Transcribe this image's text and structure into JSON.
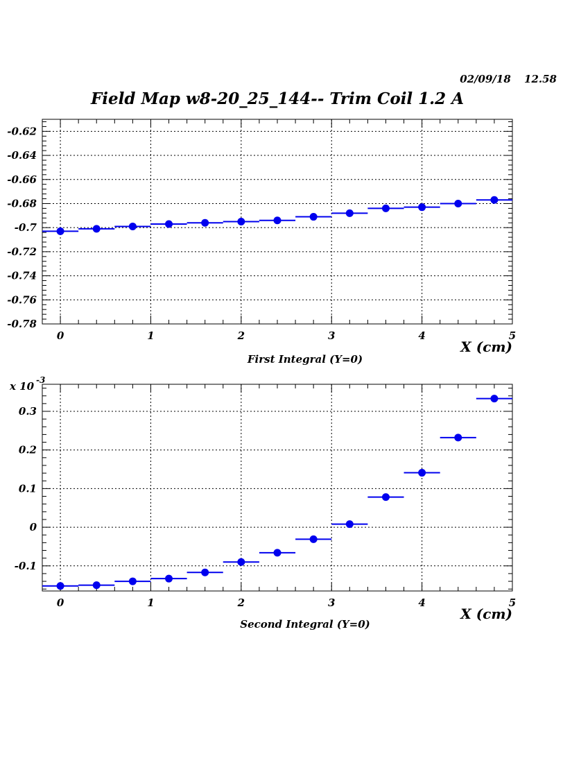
{
  "header": {
    "date": "02/09/18",
    "time": "12.58",
    "title": "Field Map w8-20_25_144-- Trim Coil 1.2 A"
  },
  "chart_data": [
    {
      "type": "scatter",
      "title": "",
      "subtitle": "First Integral (Y=0)",
      "xlabel": "X (cm)",
      "ylabel": "",
      "exponent_label": "",
      "xlim": [
        -0.2,
        5.0
      ],
      "ylim": [
        -0.78,
        -0.61
      ],
      "xticks": [
        0,
        1,
        2,
        3,
        4,
        5
      ],
      "xtick_labels": [
        "0",
        "1",
        "2",
        "3",
        "4",
        "5"
      ],
      "yticks": [
        -0.78,
        -0.76,
        -0.74,
        -0.72,
        -0.7,
        -0.68,
        -0.66,
        -0.64,
        -0.62
      ],
      "ytick_labels": [
        "-0.78",
        "-0.76",
        "-0.74",
        "-0.72",
        "-0.7",
        "-0.68",
        "-0.66",
        "-0.64",
        "-0.62"
      ],
      "grid": true,
      "x_error": 0.2,
      "x": [
        0.0,
        0.4,
        0.8,
        1.2,
        1.6,
        2.0,
        2.4,
        2.8,
        3.2,
        3.6,
        4.0,
        4.4,
        4.8
      ],
      "y": [
        -0.703,
        -0.701,
        -0.699,
        -0.697,
        -0.696,
        -0.695,
        -0.694,
        -0.691,
        -0.688,
        -0.684,
        -0.683,
        -0.68,
        -0.677
      ],
      "marker_color": "#0000ee",
      "line_color": "#0000ee"
    },
    {
      "type": "scatter",
      "title": "",
      "subtitle": "Second Integral (Y=0)",
      "xlabel": "X (cm)",
      "ylabel": "",
      "exponent_label": "x 10",
      "exponent_power": "-3",
      "xlim": [
        -0.2,
        5.0
      ],
      "ylim": [
        -0.165,
        0.37
      ],
      "xticks": [
        0,
        1,
        2,
        3,
        4,
        5
      ],
      "xtick_labels": [
        "0",
        "1",
        "2",
        "3",
        "4",
        "5"
      ],
      "yticks": [
        -0.1,
        0.0,
        0.1,
        0.2,
        0.3
      ],
      "ytick_labels": [
        "-0.1",
        "0",
        "0.1",
        "0.2",
        "0.3"
      ],
      "grid": true,
      "x_error": 0.2,
      "x": [
        0.0,
        0.4,
        0.8,
        1.2,
        1.6,
        2.0,
        2.4,
        2.8,
        3.2,
        3.6,
        4.0,
        4.4,
        4.8
      ],
      "y": [
        -0.152,
        -0.15,
        -0.14,
        -0.133,
        -0.117,
        -0.09,
        -0.066,
        -0.031,
        0.008,
        0.078,
        0.141,
        0.232,
        0.333
      ],
      "marker_color": "#0000ee",
      "line_color": "#0000ee"
    }
  ]
}
